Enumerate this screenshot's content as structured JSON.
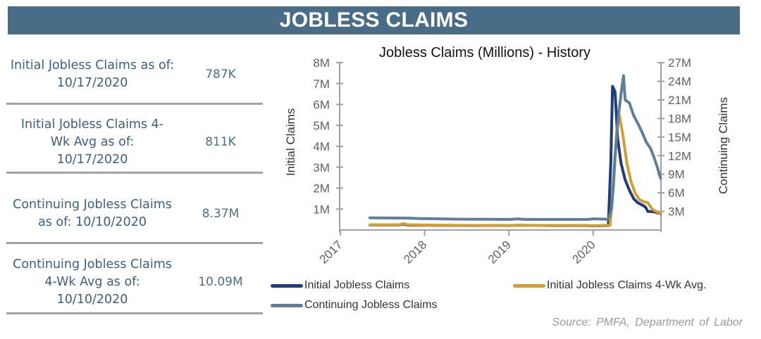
{
  "banner": {
    "title": "JOBLESS CLAIMS"
  },
  "stats": [
    {
      "label": "Initial Jobless Claims as of: 10/17/2020",
      "value": "787K"
    },
    {
      "label": "Initial Jobless Claims 4-Wk Avg as of: 10/17/2020",
      "value": "811K"
    },
    {
      "label": "Continuing Jobless Claims as of: 10/10/2020",
      "value": "8.37M"
    },
    {
      "label": "Continuing Jobless Claims 4-Wk Avg as of: 10/10/2020",
      "value": "10.09M"
    }
  ],
  "source": "Source: PMFA, Department of Labor",
  "chart_data": {
    "type": "line",
    "title": "Jobless Claims (Millions) - History",
    "xlabel": "",
    "ylabel": "Initial Claims",
    "ylabel_right": "Continuing  Claims",
    "x_ticks": [
      "2017",
      "2018",
      "2019",
      "2020"
    ],
    "y_ticks_left": [
      "1M",
      "2M",
      "3M",
      "4M",
      "5M",
      "6M",
      "7M",
      "8M"
    ],
    "y_ticks_right": [
      "3M",
      "6M",
      "9M",
      "12M",
      "15M",
      "18M",
      "21M",
      "24M",
      "27M"
    ],
    "ylim": [
      0,
      8
    ],
    "ylim_right": [
      0,
      27
    ],
    "xlim": [
      2017,
      2020.85
    ],
    "legend": [
      "Initial Jobless Claims",
      "Initial Jobless Claims 4-Wk Avg.",
      "Continuing Jobless Claims"
    ],
    "series": [
      {
        "name": "Initial Jobless Claims",
        "axis": "left",
        "color": "#1f3d7a",
        "points": [
          [
            2017.35,
            0.24
          ],
          [
            2017.7,
            0.24
          ],
          [
            2017.75,
            0.28
          ],
          [
            2017.8,
            0.23
          ],
          [
            2018.0,
            0.23
          ],
          [
            2018.3,
            0.22
          ],
          [
            2018.6,
            0.21
          ],
          [
            2018.9,
            0.22
          ],
          [
            2019.0,
            0.21
          ],
          [
            2019.1,
            0.23
          ],
          [
            2019.5,
            0.21
          ],
          [
            2019.9,
            0.21
          ],
          [
            2020.0,
            0.2
          ],
          [
            2020.18,
            0.21
          ],
          [
            2020.21,
            3.3
          ],
          [
            2020.23,
            6.87
          ],
          [
            2020.26,
            6.6
          ],
          [
            2020.29,
            4.4
          ],
          [
            2020.33,
            3.2
          ],
          [
            2020.38,
            2.4
          ],
          [
            2020.43,
            1.9
          ],
          [
            2020.48,
            1.5
          ],
          [
            2020.53,
            1.3
          ],
          [
            2020.58,
            1.2
          ],
          [
            2020.62,
            1.1
          ],
          [
            2020.65,
            0.88
          ],
          [
            2020.7,
            0.88
          ],
          [
            2020.75,
            0.84
          ],
          [
            2020.8,
            0.79
          ]
        ]
      },
      {
        "name": "Initial Jobless Claims 4-Wk Avg.",
        "axis": "left",
        "color": "#d39e34",
        "points": [
          [
            2017.35,
            0.25
          ],
          [
            2017.7,
            0.25
          ],
          [
            2017.75,
            0.31
          ],
          [
            2017.8,
            0.25
          ],
          [
            2018.5,
            0.22
          ],
          [
            2019.5,
            0.22
          ],
          [
            2020.0,
            0.21
          ],
          [
            2020.2,
            0.22
          ],
          [
            2020.24,
            2.0
          ],
          [
            2020.28,
            4.8
          ],
          [
            2020.31,
            5.5
          ],
          [
            2020.35,
            4.6
          ],
          [
            2020.4,
            3.2
          ],
          [
            2020.45,
            2.3
          ],
          [
            2020.5,
            1.75
          ],
          [
            2020.55,
            1.45
          ],
          [
            2020.6,
            1.35
          ],
          [
            2020.65,
            1.3
          ],
          [
            2020.7,
            1.0
          ],
          [
            2020.75,
            0.88
          ],
          [
            2020.8,
            0.81
          ]
        ]
      },
      {
        "name": "Continuing Jobless Claims",
        "axis": "right",
        "color": "#5f7f98",
        "points": [
          [
            2017.35,
            1.95
          ],
          [
            2017.8,
            1.92
          ],
          [
            2017.95,
            1.85
          ],
          [
            2018.1,
            1.82
          ],
          [
            2018.4,
            1.75
          ],
          [
            2018.8,
            1.72
          ],
          [
            2019.0,
            1.7
          ],
          [
            2019.1,
            1.78
          ],
          [
            2019.2,
            1.7
          ],
          [
            2019.6,
            1.7
          ],
          [
            2019.95,
            1.71
          ],
          [
            2020.0,
            1.8
          ],
          [
            2020.18,
            1.72
          ],
          [
            2020.22,
            3.5
          ],
          [
            2020.26,
            12.0
          ],
          [
            2020.3,
            18.5
          ],
          [
            2020.34,
            23.0
          ],
          [
            2020.36,
            24.9
          ],
          [
            2020.38,
            21.0
          ],
          [
            2020.43,
            20.5
          ],
          [
            2020.48,
            18.5
          ],
          [
            2020.53,
            17.2
          ],
          [
            2020.58,
            15.8
          ],
          [
            2020.63,
            14.2
          ],
          [
            2020.68,
            13.2
          ],
          [
            2020.72,
            11.8
          ],
          [
            2020.76,
            10.2
          ],
          [
            2020.8,
            8.37
          ]
        ]
      }
    ]
  }
}
